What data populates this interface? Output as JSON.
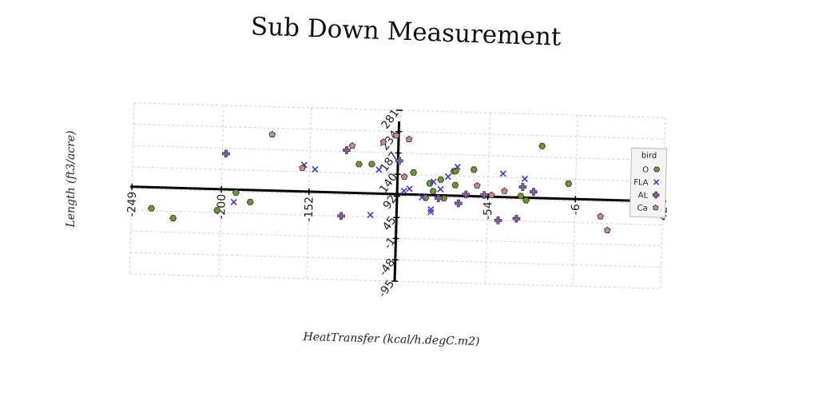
{
  "chart_data": {
    "type": "scatter",
    "title": "Sub Down Measurement",
    "xlabel": "HeatTransfer (kcal/h.degC.m2)",
    "ylabel": "Length (ft3/acre)",
    "x_ticks": [
      -249,
      -200,
      -152,
      -103,
      -54,
      -6,
      42
    ],
    "x_tick_labels": [
      "-249",
      "-200",
      "-152",
      "",
      "-54",
      "-6",
      "42"
    ],
    "y_ticks": [
      -95,
      -48,
      -1,
      45,
      92,
      140,
      187,
      234,
      281
    ],
    "y_tick_labels": [
      "-95",
      "-48",
      "-1",
      "45",
      "92",
      "140",
      "187",
      "234",
      "281"
    ],
    "xlim": [
      -249,
      42
    ],
    "ylim": [
      -95,
      281
    ],
    "grid": true,
    "legend": {
      "title": "bird",
      "position": "right"
    },
    "colors": {
      "O": "#6b9a2a",
      "FLA": "#3a3ad8",
      "AL": "#8a5aa6",
      "Ca": "#c98a8a"
    },
    "series": [
      {
        "name": "O",
        "marker": "hexagon",
        "x": [
          -238,
          -226,
          -192,
          -202,
          -184,
          -25,
          -10,
          -125,
          -118,
          -95,
          -86,
          -80,
          -88,
          -73,
          -72,
          -84,
          -78,
          -72,
          -62,
          -36,
          -33
        ],
        "y": [
          50,
          30,
          90,
          50,
          70,
          211,
          130,
          160,
          161,
          145,
          122,
          131,
          90,
          150,
          120,
          105,
          90,
          151,
          155,
          100,
          91
        ]
      },
      {
        "name": "FLA",
        "marker": "x",
        "x": [
          -193,
          -155,
          -149,
          -118,
          -114,
          -100,
          -97,
          -90,
          -85,
          -85,
          -84,
          -80,
          -76,
          -71,
          -46,
          -34
        ],
        "y": [
          69,
          155,
          146,
          49,
          149,
          104,
          109,
          91,
          65,
          59,
          126,
          110,
          138,
          160,
          148,
          138
        ],
        "scatter_note": ""
      },
      {
        "name": "AL",
        "marker": "plus",
        "x": [
          -198,
          -132,
          -134,
          -103,
          -81,
          -56,
          -70,
          -66,
          -48,
          -38,
          -35,
          -29
        ],
        "y": [
          175,
          190,
          45,
          170,
          90,
          100,
          80,
          100,
          45,
          50,
          120,
          110
        ],
        "scatter_note": ""
      },
      {
        "name": "Ca",
        "marker": "pentagon",
        "x": [
          -173,
          -156,
          -129,
          -112,
          -105,
          -98,
          -100,
          -60,
          -52,
          -45,
          8,
          12,
          27
        ],
        "y": [
          220,
          148,
          200,
          210,
          225,
          218,
          135,
          120,
          100,
          110,
          60,
          30,
          70
        ],
        "scatter_note": ""
      }
    ]
  }
}
